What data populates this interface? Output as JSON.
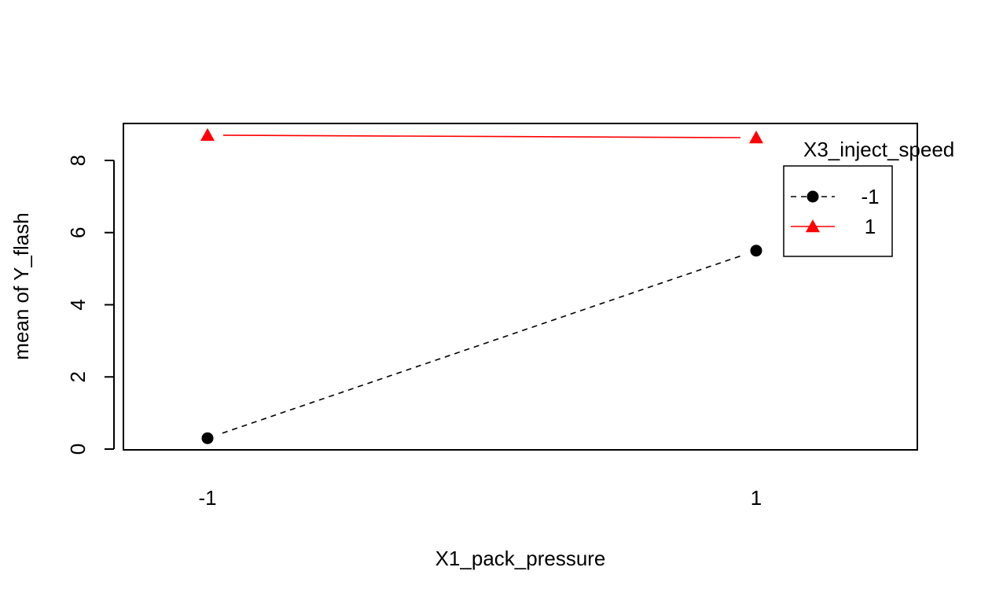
{
  "chart_data": {
    "type": "line",
    "title": "",
    "xlabel": "X1_pack_pressure",
    "ylabel": "mean of  Y_flash",
    "categories": [
      "-1",
      "1"
    ],
    "ylim": [
      0,
      9
    ],
    "y_ticks": [
      "0",
      "2",
      "4",
      "6",
      "8"
    ],
    "legend": {
      "title": "X3_inject_speed",
      "placement": "top-right"
    },
    "series": [
      {
        "name": "-1",
        "values": [
          0.3,
          5.5
        ],
        "color": "#000000",
        "marker": "circle",
        "line_style": "dashed"
      },
      {
        "name": "1",
        "values": [
          8.7,
          8.63
        ],
        "color": "#ff0000",
        "marker": "triangle",
        "line_style": "solid"
      }
    ]
  }
}
